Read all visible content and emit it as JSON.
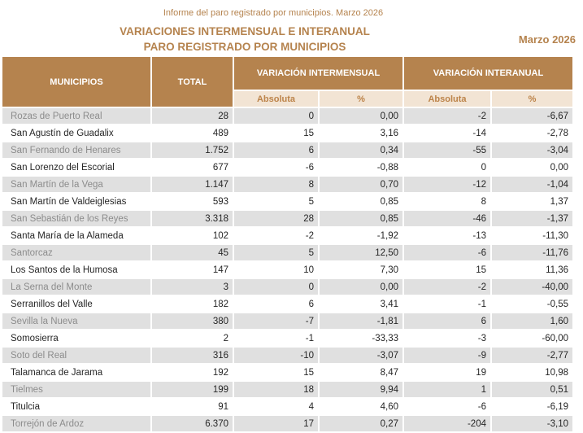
{
  "header": {
    "report_line": "Informe del paro registrado por municipios. Marzo 2026",
    "title_line1": "VARIACIONES INTERMENSUAL E INTERANUAL",
    "title_line2": "PARO REGISTRADO POR MUNICIPIOS",
    "period": "Marzo 2026"
  },
  "colors": {
    "accent_brown": "#b5834e",
    "subheader_cream": "#f2e4d4",
    "subheader_text": "#bc8349",
    "row_stripe_gray": "#e0e0e0",
    "stripe_name_text": "#8c8c8c",
    "body_text": "#262626"
  },
  "table": {
    "headers": {
      "municipios": "MUNICIPIOS",
      "total": "TOTAL",
      "intermensual": "VARIACIÓN INTERMENSUAL",
      "interanual": "VARIACIÓN INTERANUAL",
      "absoluta": "Absoluta",
      "percent": "%"
    },
    "rows": [
      {
        "municipio": "Rozas de Puerto Real",
        "total": "28",
        "im_abs": "0",
        "im_pct": "0,00",
        "ia_abs": "-2",
        "ia_pct": "-6,67"
      },
      {
        "municipio": "San Agustín de Guadalix",
        "total": "489",
        "im_abs": "15",
        "im_pct": "3,16",
        "ia_abs": "-14",
        "ia_pct": "-2,78"
      },
      {
        "municipio": "San Fernando de Henares",
        "total": "1.752",
        "im_abs": "6",
        "im_pct": "0,34",
        "ia_abs": "-55",
        "ia_pct": "-3,04"
      },
      {
        "municipio": "San Lorenzo del Escorial",
        "total": "677",
        "im_abs": "-6",
        "im_pct": "-0,88",
        "ia_abs": "0",
        "ia_pct": "0,00"
      },
      {
        "municipio": "San Martín de la Vega",
        "total": "1.147",
        "im_abs": "8",
        "im_pct": "0,70",
        "ia_abs": "-12",
        "ia_pct": "-1,04"
      },
      {
        "municipio": "San Martín de Valdeiglesias",
        "total": "593",
        "im_abs": "5",
        "im_pct": "0,85",
        "ia_abs": "8",
        "ia_pct": "1,37"
      },
      {
        "municipio": "San Sebastián de los Reyes",
        "total": "3.318",
        "im_abs": "28",
        "im_pct": "0,85",
        "ia_abs": "-46",
        "ia_pct": "-1,37"
      },
      {
        "municipio": "Santa María de la Alameda",
        "total": "102",
        "im_abs": "-2",
        "im_pct": "-1,92",
        "ia_abs": "-13",
        "ia_pct": "-11,30"
      },
      {
        "municipio": "Santorcaz",
        "total": "45",
        "im_abs": "5",
        "im_pct": "12,50",
        "ia_abs": "-6",
        "ia_pct": "-11,76"
      },
      {
        "municipio": "Los Santos de la Humosa",
        "total": "147",
        "im_abs": "10",
        "im_pct": "7,30",
        "ia_abs": "15",
        "ia_pct": "11,36"
      },
      {
        "municipio": "La Serna del Monte",
        "total": "3",
        "im_abs": "0",
        "im_pct": "0,00",
        "ia_abs": "-2",
        "ia_pct": "-40,00"
      },
      {
        "municipio": "Serranillos del Valle",
        "total": "182",
        "im_abs": "6",
        "im_pct": "3,41",
        "ia_abs": "-1",
        "ia_pct": "-0,55"
      },
      {
        "municipio": "Sevilla la Nueva",
        "total": "380",
        "im_abs": "-7",
        "im_pct": "-1,81",
        "ia_abs": "6",
        "ia_pct": "1,60"
      },
      {
        "municipio": "Somosierra",
        "total": "2",
        "im_abs": "-1",
        "im_pct": "-33,33",
        "ia_abs": "-3",
        "ia_pct": "-60,00"
      },
      {
        "municipio": "Soto del Real",
        "total": "316",
        "im_abs": "-10",
        "im_pct": "-3,07",
        "ia_abs": "-9",
        "ia_pct": "-2,77"
      },
      {
        "municipio": "Talamanca de Jarama",
        "total": "192",
        "im_abs": "15",
        "im_pct": "8,47",
        "ia_abs": "19",
        "ia_pct": "10,98"
      },
      {
        "municipio": "Tielmes",
        "total": "199",
        "im_abs": "18",
        "im_pct": "9,94",
        "ia_abs": "1",
        "ia_pct": "0,51"
      },
      {
        "municipio": "Titulcia",
        "total": "91",
        "im_abs": "4",
        "im_pct": "4,60",
        "ia_abs": "-6",
        "ia_pct": "-6,19"
      },
      {
        "municipio": "Torrejón de Ardoz",
        "total": "6.370",
        "im_abs": "17",
        "im_pct": "0,27",
        "ia_abs": "-204",
        "ia_pct": "-3,10"
      }
    ]
  }
}
